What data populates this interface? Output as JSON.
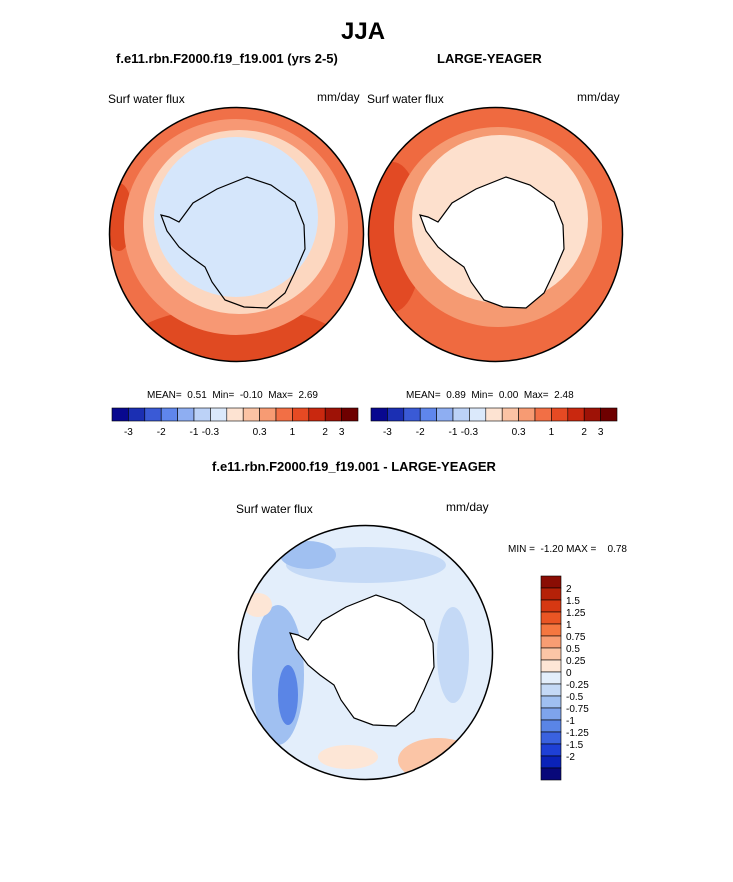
{
  "figure": {
    "season": "JJA",
    "case_title": "f.e11.rbn.F2000.f19_f19.001 (yrs 2-5)",
    "obs_title": "LARGE-YEAGER",
    "diff_title": "f.e11.rbn.F2000.f19_f19.001 - LARGE-YEAGER"
  },
  "panels": [
    {
      "id": "case",
      "field": "Surf water flux",
      "units": "mm/day",
      "stats": {
        "mean_label": "MEAN=",
        "mean": "0.51",
        "min_label": "Min=",
        "min": "-0.10",
        "max_label": "Max=",
        "max": "2.69"
      }
    },
    {
      "id": "obs",
      "field": "Surf water flux",
      "units": "mm/day",
      "stats": {
        "mean_label": "MEAN=",
        "mean": "0.89",
        "min_label": "Min=",
        "min": "0.00",
        "max_label": "Max=",
        "max": "2.48"
      }
    },
    {
      "id": "diff",
      "field": "Surf water flux",
      "units": "mm/day",
      "stats_text": "MIN =  -1.20 MAX =    0.78"
    }
  ],
  "colorbar_horizontal": {
    "colors": [
      "#08088f",
      "#1b2fb3",
      "#3a5ad6",
      "#5f86ec",
      "#8eaef2",
      "#bcd2f7",
      "#dbe9fb",
      "#fde3d2",
      "#fbc3a4",
      "#f79b73",
      "#f26f45",
      "#e64a23",
      "#c9280f",
      "#9e1206",
      "#6e0000"
    ],
    "ticks": [
      "-3",
      "-2",
      "-1",
      "-0.3",
      "0.3",
      "1",
      "2",
      "3"
    ]
  },
  "colorbar_vertical": {
    "colors_top_to_bottom": [
      "#8a0d04",
      "#b52108",
      "#d63812",
      "#ea5524",
      "#f57740",
      "#f89d73",
      "#fbc5a6",
      "#fde6d6",
      "#e3eefb",
      "#c4d9f6",
      "#a0c0f1",
      "#7ea4ec",
      "#5a85e6",
      "#3a62df",
      "#1e40d6",
      "#0a22b8",
      "#08087a"
    ],
    "labels": [
      "2",
      "1.5",
      "1.25",
      "1",
      "0.75",
      "0.5",
      "0.25",
      "0",
      "-0.25",
      "-0.5",
      "-0.75",
      "-1",
      "-1.25",
      "-1.5",
      "-2"
    ]
  }
}
